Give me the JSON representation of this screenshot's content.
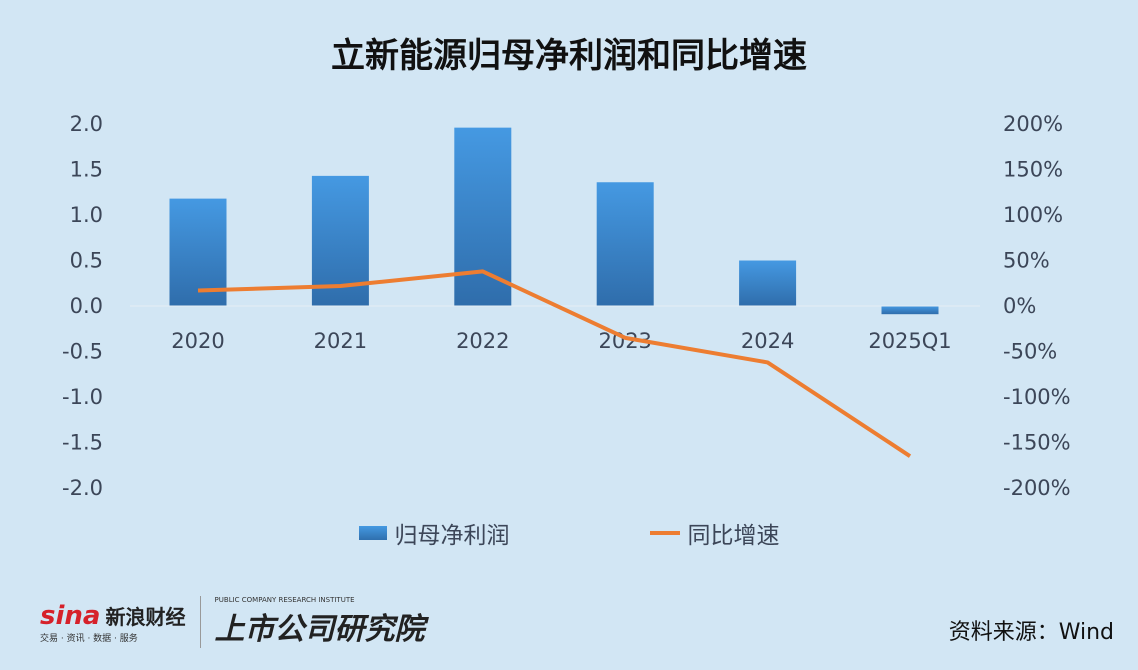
{
  "chart_data": {
    "type": "bar+line",
    "title": "立新能源归母净利润和同比增速",
    "categories": [
      "2020",
      "2021",
      "2022",
      "2023",
      "2024",
      "2025Q1"
    ],
    "series": [
      {
        "name": "归母净利润",
        "type": "bar",
        "axis": "left",
        "values": [
          1.18,
          1.43,
          1.96,
          1.36,
          0.5,
          -0.09
        ],
        "color": "#3d86cf"
      },
      {
        "name": "同比增速",
        "type": "line",
        "axis": "right",
        "unit": "%",
        "values": [
          17,
          22,
          38,
          -35,
          -62,
          -165
        ],
        "color": "#ed7d31"
      }
    ],
    "left_axis": {
      "ylim": [
        -2.0,
        2.0
      ],
      "ticks": [
        "2.0",
        "1.5",
        "1.0",
        "0.5",
        "0.0",
        "-0.5",
        "-1.0",
        "-1.5",
        "-2.0"
      ]
    },
    "right_axis": {
      "ylim": [
        -200,
        200
      ],
      "ticks": [
        "200%",
        "150%",
        "100%",
        "50%",
        "0%",
        "-50%",
        "-100%",
        "-150%",
        "-200%"
      ]
    },
    "grid": false,
    "legend": "bottom"
  },
  "footer": {
    "logo_sina": "sina",
    "logo_sina_cn": "新浪财经",
    "logo_sina_sub": "交易 · 资讯 · 数据 · 服务",
    "logo_institute": "上市公司研究院",
    "logo_institute_sub": "PUBLIC COMPANY RESEARCH INSTITUTE",
    "source": "资料来源：Wind"
  }
}
